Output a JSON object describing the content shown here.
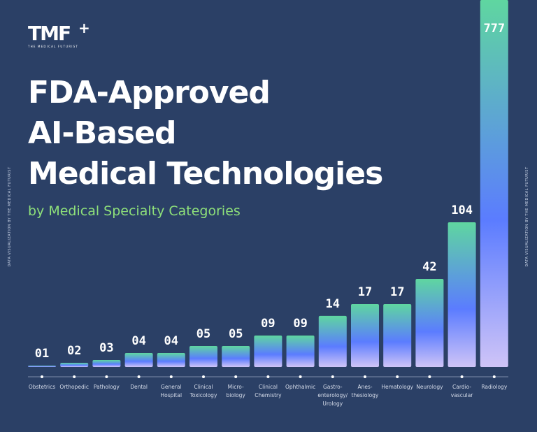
{
  "logo": {
    "text": "TMF",
    "plus": "+",
    "subtitle": "THE MEDICAL FUTURIST"
  },
  "side_text": "DATA VISUALIZATION BY THE MEDICAL FUTURIST",
  "colors": {
    "background": "#2b4066",
    "bar_top": "#5fd6a0",
    "bar_mid": "#5b7cff",
    "bar_bottom": "#cfc4f7",
    "subtitle": "#8ee07a"
  },
  "chart_data": {
    "type": "bar",
    "title": "FDA-Approved AI-Based Medical Technologies",
    "title_lines": [
      "FDA-Approved",
      "AI-Based",
      "Medical Technologies"
    ],
    "subtitle": "by Medical Specialty Categories",
    "categories": [
      "Obstetrics",
      "Orthopedic",
      "Pathology",
      "Dental",
      "General\nHospital",
      "Clinical\nToxicology",
      "Micro-\nbiology",
      "Clinical\nChemistry",
      "Ophthalmic",
      "Gastro-\nenterology/\nUrology",
      "Anes-\nthesiology",
      "Hematology",
      "Neurology",
      "Cardio-\nvascular",
      "Radiology"
    ],
    "values": [
      1,
      2,
      3,
      4,
      4,
      5,
      5,
      9,
      9,
      14,
      17,
      17,
      42,
      104,
      777
    ],
    "data_labels": [
      "01",
      "02",
      "03",
      "04",
      "04",
      "05",
      "05",
      "09",
      "09",
      "14",
      "17",
      "17",
      "42",
      "104",
      "777"
    ],
    "scale": "non-linear (bars not proportional)",
    "grid": false,
    "legend": "none"
  }
}
